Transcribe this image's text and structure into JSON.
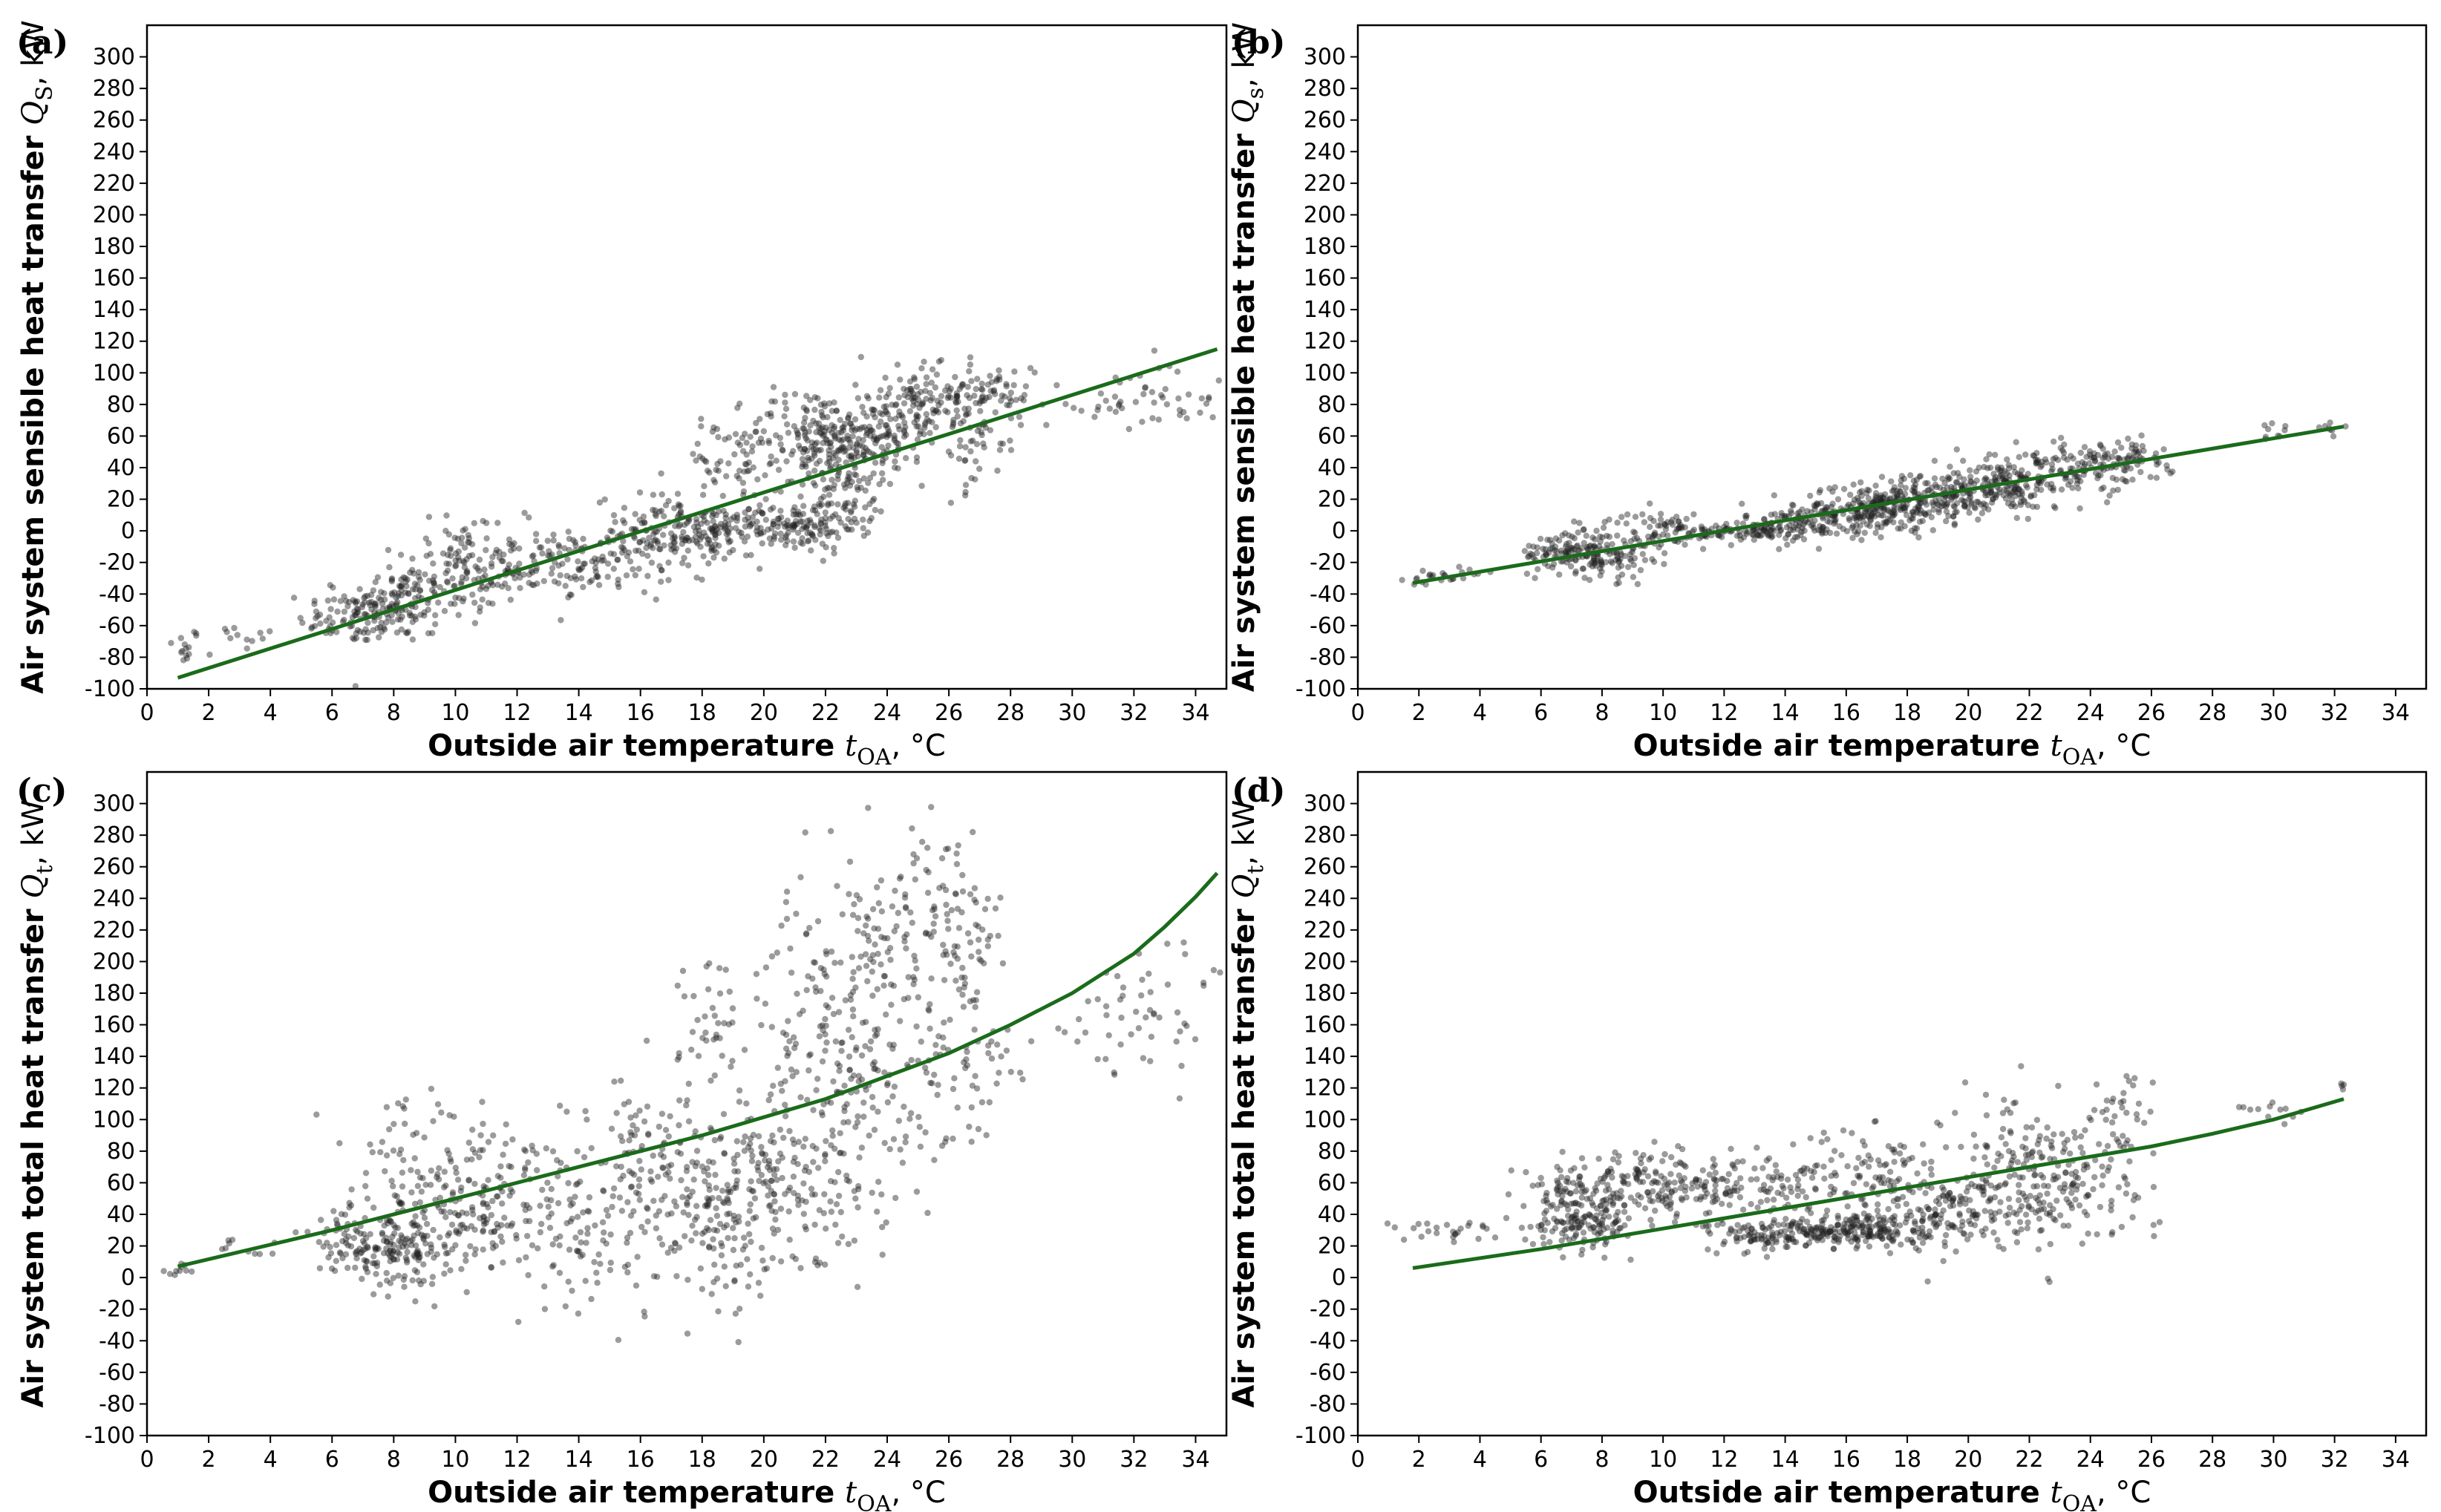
{
  "figure": {
    "colors": {
      "fit_line": "#1a6b1a",
      "points": "#222222",
      "frame": "#000000"
    }
  },
  "chart_data": [
    {
      "panel": "(a)",
      "type": "scatter",
      "xlabel": {
        "main": "Outside air temperature ",
        "var": "t",
        "sub": "OA",
        "unit": ", °C"
      },
      "ylabel": {
        "main": "Air system sensible heat transfer ",
        "var": "Q",
        "sub": "S",
        "unit": ", kW"
      },
      "xlim": [
        0,
        35
      ],
      "ylim": [
        -100,
        320
      ],
      "xticks": [
        0,
        2,
        4,
        6,
        8,
        10,
        12,
        14,
        16,
        18,
        20,
        22,
        24,
        26,
        28,
        30,
        32,
        34
      ],
      "yticks": [
        -100,
        -80,
        -60,
        -40,
        -20,
        0,
        20,
        40,
        60,
        80,
        100,
        120,
        140,
        160,
        180,
        200,
        220,
        240,
        260,
        280,
        300
      ],
      "fit": {
        "kind": "linear",
        "x": [
          1,
          34.7
        ],
        "y": [
          -93,
          115
        ]
      },
      "clusters": [
        {
          "x": 1.2,
          "y": -74,
          "sx": 0.3,
          "sy": 6,
          "n": 14
        },
        {
          "x": 3,
          "y": -66,
          "sx": 0.8,
          "sy": 5,
          "n": 12
        },
        {
          "x": 6.5,
          "y": -55,
          "sx": 0.8,
          "sy": 8,
          "n": 60
        },
        {
          "x": 8,
          "y": -48,
          "sx": 0.8,
          "sy": 12,
          "n": 120
        },
        {
          "x": 10,
          "y": -30,
          "sx": 1.0,
          "sy": 15,
          "n": 110
        },
        {
          "x": 10.5,
          "y": -12,
          "sx": 0.9,
          "sy": 12,
          "n": 40
        },
        {
          "x": 12.5,
          "y": -22,
          "sx": 1.0,
          "sy": 12,
          "n": 60
        },
        {
          "x": 14.5,
          "y": -22,
          "sx": 0.9,
          "sy": 8,
          "n": 60
        },
        {
          "x": 16.5,
          "y": -5,
          "sx": 1.0,
          "sy": 14,
          "n": 120
        },
        {
          "x": 18.5,
          "y": 0,
          "sx": 1.0,
          "sy": 8,
          "n": 120
        },
        {
          "x": 19,
          "y": 42,
          "sx": 1.0,
          "sy": 12,
          "n": 60
        },
        {
          "x": 21,
          "y": 2,
          "sx": 1.0,
          "sy": 8,
          "n": 110
        },
        {
          "x": 21.5,
          "y": 62,
          "sx": 1.0,
          "sy": 14,
          "n": 130
        },
        {
          "x": 22.5,
          "y": 28,
          "sx": 0.8,
          "sy": 18,
          "n": 110
        },
        {
          "x": 23.5,
          "y": 62,
          "sx": 0.9,
          "sy": 14,
          "n": 140
        },
        {
          "x": 25.5,
          "y": 84,
          "sx": 1.1,
          "sy": 10,
          "n": 110
        },
        {
          "x": 26.5,
          "y": 60,
          "sx": 1.0,
          "sy": 18,
          "n": 70
        },
        {
          "x": 27.5,
          "y": 90,
          "sx": 0.8,
          "sy": 8,
          "n": 40
        },
        {
          "x": 31,
          "y": 78,
          "sx": 0.9,
          "sy": 6,
          "n": 20
        },
        {
          "x": 33,
          "y": 92,
          "sx": 0.9,
          "sy": 10,
          "n": 25
        },
        {
          "x": 34,
          "y": 80,
          "sx": 0.4,
          "sy": 15,
          "n": 8
        }
      ]
    },
    {
      "panel": "(b)",
      "type": "scatter",
      "xlabel": {
        "main": "Outside air temperature ",
        "var": "t",
        "sub": "OA",
        "unit": ", °C"
      },
      "ylabel": {
        "main": "Air system sensible heat transfer ",
        "var": "Q",
        "sub": "s",
        "unit": ", kW"
      },
      "xlim": [
        0,
        35
      ],
      "ylim": [
        -100,
        320
      ],
      "xticks": [
        0,
        2,
        4,
        6,
        8,
        10,
        12,
        14,
        16,
        18,
        20,
        22,
        24,
        26,
        28,
        30,
        32,
        34
      ],
      "yticks": [
        -100,
        -80,
        -60,
        -40,
        -20,
        0,
        20,
        40,
        60,
        80,
        100,
        120,
        140,
        160,
        180,
        200,
        220,
        240,
        260,
        280,
        300
      ],
      "fit": {
        "kind": "linear",
        "x": [
          1.8,
          32.3
        ],
        "y": [
          -33,
          66
        ]
      },
      "clusters": [
        {
          "x": 2.8,
          "y": -30,
          "sx": 0.9,
          "sy": 3,
          "n": 25
        },
        {
          "x": 6.5,
          "y": -14,
          "sx": 0.6,
          "sy": 6,
          "n": 60
        },
        {
          "x": 8,
          "y": -14,
          "sx": 0.8,
          "sy": 8,
          "n": 130
        },
        {
          "x": 9.5,
          "y": 0,
          "sx": 0.7,
          "sy": 6,
          "n": 40
        },
        {
          "x": 10.5,
          "y": 4,
          "sx": 0.6,
          "sy": 4,
          "n": 25
        },
        {
          "x": 12.5,
          "y": -1,
          "sx": 1.0,
          "sy": 4,
          "n": 80
        },
        {
          "x": 15,
          "y": 6,
          "sx": 1.2,
          "sy": 6,
          "n": 140
        },
        {
          "x": 17,
          "y": 14,
          "sx": 1.2,
          "sy": 7,
          "n": 170
        },
        {
          "x": 19,
          "y": 22,
          "sx": 1.2,
          "sy": 8,
          "n": 170
        },
        {
          "x": 21.5,
          "y": 30,
          "sx": 1.2,
          "sy": 9,
          "n": 170
        },
        {
          "x": 24,
          "y": 42,
          "sx": 1.2,
          "sy": 8,
          "n": 110
        },
        {
          "x": 25.5,
          "y": 45,
          "sx": 0.6,
          "sy": 6,
          "n": 30
        },
        {
          "x": 30,
          "y": 62,
          "sx": 0.8,
          "sy": 3,
          "n": 12
        },
        {
          "x": 32,
          "y": 68,
          "sx": 0.3,
          "sy": 3,
          "n": 5
        }
      ]
    },
    {
      "panel": "(c)",
      "type": "scatter",
      "xlabel": {
        "main": "Outside air temperature ",
        "var": "t",
        "sub": "OA",
        "unit": ", °C"
      },
      "ylabel": {
        "main": "Air system total heat transfer ",
        "var": "Q",
        "sub": "t",
        "unit": ", kW"
      },
      "xlim": [
        0,
        35
      ],
      "ylim": [
        -100,
        320
      ],
      "xticks": [
        0,
        2,
        4,
        6,
        8,
        10,
        12,
        14,
        16,
        18,
        20,
        22,
        24,
        26,
        28,
        30,
        32,
        34
      ],
      "yticks": [
        -100,
        -80,
        -60,
        -40,
        -20,
        0,
        20,
        40,
        60,
        80,
        100,
        120,
        140,
        160,
        180,
        200,
        220,
        240,
        260,
        280,
        300
      ],
      "fit": {
        "kind": "exponential",
        "x": [
          1,
          34.7
        ],
        "y": [
          7,
          256
        ],
        "points": [
          [
            1,
            7
          ],
          [
            6,
            30
          ],
          [
            10,
            50
          ],
          [
            14,
            70
          ],
          [
            18,
            90
          ],
          [
            22,
            113
          ],
          [
            26,
            142
          ],
          [
            28,
            160
          ],
          [
            30,
            180
          ],
          [
            32,
            205
          ],
          [
            33,
            222
          ],
          [
            34,
            241
          ],
          [
            34.7,
            256
          ]
        ]
      },
      "clusters": [
        {
          "x": 1.2,
          "y": 4,
          "sx": 0.3,
          "sy": 3,
          "n": 10
        },
        {
          "x": 3.5,
          "y": 20,
          "sx": 0.8,
          "sy": 5,
          "n": 10
        },
        {
          "x": 6.5,
          "y": 25,
          "sx": 0.8,
          "sy": 12,
          "n": 60
        },
        {
          "x": 8,
          "y": 16,
          "sx": 0.8,
          "sy": 10,
          "n": 120
        },
        {
          "x": 8.5,
          "y": 70,
          "sx": 1.0,
          "sy": 20,
          "n": 60
        },
        {
          "x": 10,
          "y": 30,
          "sx": 1.0,
          "sy": 15,
          "n": 100
        },
        {
          "x": 11,
          "y": 68,
          "sx": 0.8,
          "sy": 18,
          "n": 50
        },
        {
          "x": 12.5,
          "y": 45,
          "sx": 1.0,
          "sy": 25,
          "n": 60
        },
        {
          "x": 14.5,
          "y": 30,
          "sx": 1.0,
          "sy": 25,
          "n": 80
        },
        {
          "x": 16.5,
          "y": 70,
          "sx": 1.0,
          "sy": 30,
          "n": 120
        },
        {
          "x": 18.5,
          "y": 40,
          "sx": 1.0,
          "sy": 25,
          "n": 120
        },
        {
          "x": 18.5,
          "y": 160,
          "sx": 0.6,
          "sy": 25,
          "n": 40
        },
        {
          "x": 20.5,
          "y": 60,
          "sx": 1.0,
          "sy": 30,
          "n": 130
        },
        {
          "x": 21.5,
          "y": 160,
          "sx": 1.0,
          "sy": 45,
          "n": 90
        },
        {
          "x": 23,
          "y": 110,
          "sx": 1.0,
          "sy": 50,
          "n": 140
        },
        {
          "x": 24,
          "y": 200,
          "sx": 1.0,
          "sy": 40,
          "n": 80
        },
        {
          "x": 26,
          "y": 230,
          "sx": 1.0,
          "sy": 25,
          "n": 80
        },
        {
          "x": 26.5,
          "y": 130,
          "sx": 0.9,
          "sy": 40,
          "n": 80
        },
        {
          "x": 31,
          "y": 165,
          "sx": 1.0,
          "sy": 20,
          "n": 25
        },
        {
          "x": 33,
          "y": 170,
          "sx": 0.9,
          "sy": 25,
          "n": 25
        },
        {
          "x": 34.5,
          "y": 190,
          "sx": 0.3,
          "sy": 5,
          "n": 4
        }
      ]
    },
    {
      "panel": "(d)",
      "type": "scatter",
      "xlabel": {
        "main": "Outside air temperature ",
        "var": "t",
        "sub": "OA",
        "unit": ", °C"
      },
      "ylabel": {
        "main": "Air system total heat transfer ",
        "var": "Q",
        "sub": "t",
        "unit": ", kW"
      },
      "xlim": [
        0,
        35
      ],
      "ylim": [
        -100,
        320
      ],
      "xticks": [
        0,
        2,
        4,
        6,
        8,
        10,
        12,
        14,
        16,
        18,
        20,
        22,
        24,
        26,
        28,
        30,
        32,
        34
      ],
      "yticks": [
        -100,
        -80,
        -60,
        -40,
        -20,
        0,
        20,
        40,
        60,
        80,
        100,
        120,
        140,
        160,
        180,
        200,
        220,
        240,
        260,
        280,
        300
      ],
      "fit": {
        "kind": "exponential",
        "x": [
          1.8,
          32.3
        ],
        "y": [
          6,
          113
        ],
        "points": [
          [
            1.8,
            6
          ],
          [
            6,
            18
          ],
          [
            10,
            31
          ],
          [
            14,
            44
          ],
          [
            18,
            57
          ],
          [
            22,
            70
          ],
          [
            26,
            83
          ],
          [
            28,
            91
          ],
          [
            30,
            100
          ],
          [
            32.3,
            113
          ]
        ]
      },
      "clusters": [
        {
          "x": 2.8,
          "y": 30,
          "sx": 0.9,
          "sy": 3,
          "n": 25
        },
        {
          "x": 6.8,
          "y": 55,
          "sx": 0.7,
          "sy": 8,
          "n": 70
        },
        {
          "x": 7.5,
          "y": 35,
          "sx": 0.9,
          "sy": 8,
          "n": 130
        },
        {
          "x": 9.5,
          "y": 60,
          "sx": 1.0,
          "sy": 10,
          "n": 130
        },
        {
          "x": 11.5,
          "y": 55,
          "sx": 1.0,
          "sy": 8,
          "n": 60
        },
        {
          "x": 13.5,
          "y": 27,
          "sx": 1.0,
          "sy": 5,
          "n": 100
        },
        {
          "x": 13.5,
          "y": 60,
          "sx": 1.0,
          "sy": 10,
          "n": 60
        },
        {
          "x": 16.5,
          "y": 30,
          "sx": 1.2,
          "sy": 6,
          "n": 200
        },
        {
          "x": 17,
          "y": 65,
          "sx": 1.2,
          "sy": 15,
          "n": 100
        },
        {
          "x": 19.5,
          "y": 40,
          "sx": 1.2,
          "sy": 12,
          "n": 140
        },
        {
          "x": 21.5,
          "y": 75,
          "sx": 1.2,
          "sy": 20,
          "n": 130
        },
        {
          "x": 23.5,
          "y": 60,
          "sx": 1.2,
          "sy": 20,
          "n": 110
        },
        {
          "x": 25,
          "y": 105,
          "sx": 0.6,
          "sy": 15,
          "n": 30
        },
        {
          "x": 30,
          "y": 105,
          "sx": 1.0,
          "sy": 4,
          "n": 12
        },
        {
          "x": 32.2,
          "y": 120,
          "sx": 0.2,
          "sy": 3,
          "n": 4
        }
      ]
    }
  ]
}
